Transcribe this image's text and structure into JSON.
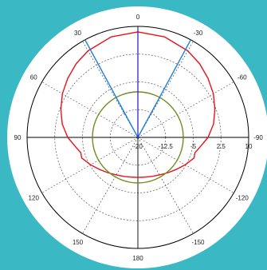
{
  "chart_data": {
    "type": "line",
    "subtype": "polar",
    "title": "",
    "angle_ticks": [
      "0",
      "-30",
      "-60",
      "-90",
      "-120",
      "-150",
      "180",
      "150",
      "120",
      "90",
      "60",
      "30"
    ],
    "angle_tick_values": [
      0,
      -30,
      -60,
      -90,
      -120,
      -150,
      180,
      150,
      120,
      90,
      60,
      30
    ],
    "radial_ticks": [
      "-20",
      "-12.5",
      "-5",
      "2.5",
      "10"
    ],
    "radial_tick_values": [
      -20,
      -12.5,
      -5,
      2.5,
      10
    ],
    "rlim": [
      -20,
      10
    ],
    "angle_direction": "clockwise-negative (0 at top, -90 at right)",
    "grid": true,
    "series": [
      {
        "color": "#e8121b",
        "kind": "pattern",
        "theta": [
          0,
          15,
          30,
          40,
          50,
          60,
          70,
          80,
          90,
          100,
          105,
          110,
          120,
          130,
          140,
          150,
          160,
          170,
          180
        ],
        "r": [
          8.5,
          8.1,
          7.0,
          6.0,
          4.8,
          3.6,
          2.2,
          0.8,
          -1.0,
          -3.2,
          -4.0,
          -3.8,
          -5.2,
          -6.5,
          -7.5,
          -8.3,
          -8.8,
          -9.1,
          -9.2
        ]
      },
      {
        "color": "#6b8e23",
        "kind": "circle",
        "r_value": -7.7
      },
      {
        "color": "#1e7fd8",
        "kind": "beam-lines",
        "angles": [
          28.5,
          -28.5
        ],
        "r_value": 10
      },
      {
        "color": "#3a1fcf",
        "kind": "main-lobe-line",
        "angles": [
          0
        ],
        "r_value": 9
      }
    ]
  }
}
